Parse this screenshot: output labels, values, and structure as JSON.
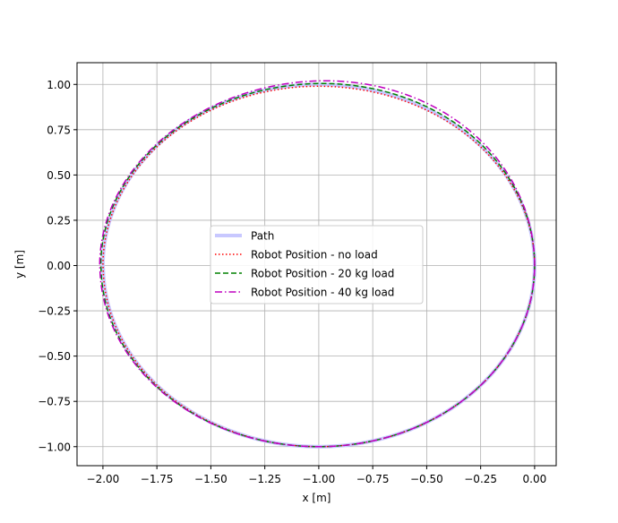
{
  "chart_data": {
    "type": "line",
    "title": "",
    "xlabel": "x [m]",
    "ylabel": "y [m]",
    "xlim": [
      -2.12,
      0.1
    ],
    "ylim": [
      -1.105,
      1.12
    ],
    "grid": true,
    "legend_position": "center",
    "xticks": [
      -2.0,
      -1.75,
      -1.5,
      -1.25,
      -1.0,
      -0.75,
      -0.5,
      -0.25,
      0.0
    ],
    "xtick_labels": [
      "−2.00",
      "−1.75",
      "−1.50",
      "−1.25",
      "−1.00",
      "−0.75",
      "−0.50",
      "−0.25",
      "0.00"
    ],
    "yticks": [
      -1.0,
      -0.75,
      -0.5,
      -0.25,
      0.0,
      0.25,
      0.5,
      0.75,
      1.0
    ],
    "ytick_labels": [
      "−1.00",
      "−0.75",
      "−0.50",
      "−0.25",
      "0.00",
      "0.25",
      "0.50",
      "0.75",
      "1.00"
    ],
    "series": [
      {
        "name": "Path",
        "color": "#c8c8ff",
        "style": "solid",
        "width": 4,
        "ellipse": {
          "cx": -1.0,
          "cy": 0.0,
          "rx": 1.0,
          "ry_top": 1.0,
          "ry_bottom": 1.0,
          "top_shift": 0.0,
          "left_x": -2.0
        }
      },
      {
        "name": "Robot Position - no load",
        "color": "#ff0000",
        "style": "dotted",
        "width": 1.5,
        "ellipse": {
          "cx": -1.0,
          "cy": 0.0,
          "rx": 1.0,
          "ry_top": 0.99,
          "ry_bottom": 1.0,
          "top_shift": 0.0,
          "left_x": -2.0
        }
      },
      {
        "name": "Robot Position - 20 kg load",
        "color": "#008000",
        "style": "dashed",
        "width": 1.5,
        "ellipse": {
          "cx": -1.0,
          "cy": 0.0,
          "rx": 1.0,
          "ry_top": 1.005,
          "ry_bottom": 1.0,
          "top_shift": 0.03,
          "left_x": -2.01
        }
      },
      {
        "name": "Robot Position - 40 kg load",
        "color": "#bf00bf",
        "style": "dashdot",
        "width": 1.5,
        "ellipse": {
          "cx": -1.0,
          "cy": 0.0,
          "rx": 1.0,
          "ry_top": 1.02,
          "ry_bottom": 1.0,
          "top_shift": 0.06,
          "left_x": -2.015
        }
      }
    ]
  }
}
